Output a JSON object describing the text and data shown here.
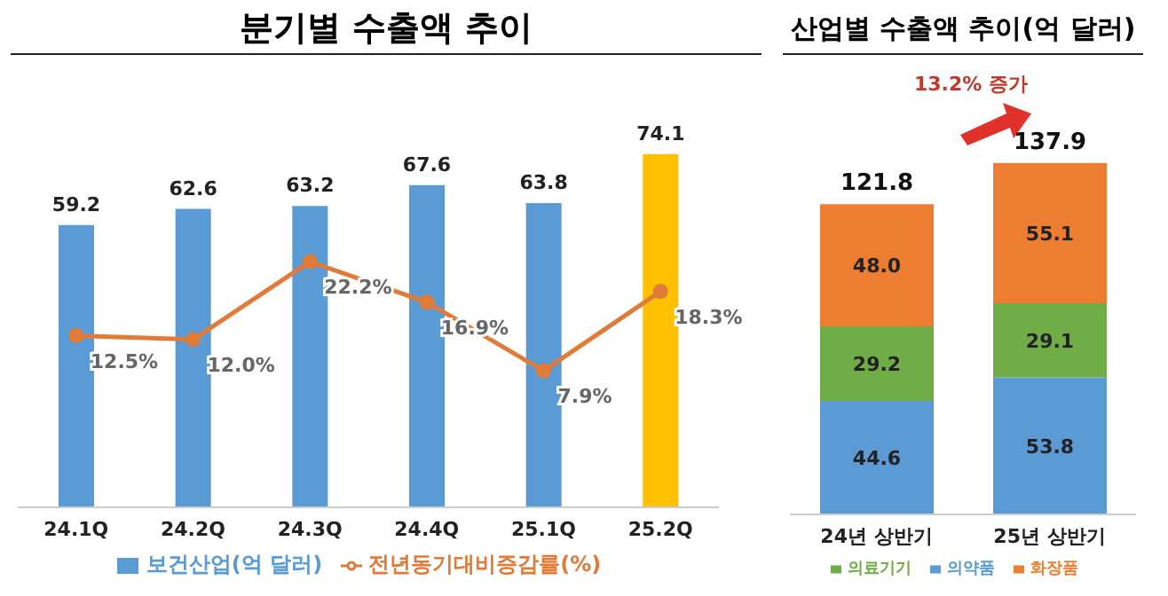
{
  "chart_data": [
    {
      "type": "bar",
      "title": "분기별 수출액 추이",
      "categories": [
        "24.1Q",
        "24.2Q",
        "24.3Q",
        "24.4Q",
        "25.1Q",
        "25.2Q"
      ],
      "tick_labels": "x",
      "legend": "bottom",
      "marker": "circle",
      "series": [
        {
          "name": "보건산업(억 달러)",
          "type": "bar",
          "color": "#5b9bd5",
          "colors": [
            "#5b9bd5",
            "#5b9bd5",
            "#5b9bd5",
            "#5b9bd5",
            "#5b9bd5",
            "#ffc000"
          ],
          "values": [
            59.2,
            62.6,
            63.2,
            67.6,
            63.8,
            74.1
          ],
          "value_labels": [
            "59.2",
            "62.6",
            "63.2",
            "67.6",
            "63.8",
            "74.1"
          ]
        },
        {
          "name": "전년동기대비증감률(%)",
          "type": "line",
          "axis": "y2",
          "color": "#e07b39",
          "values": [
            12.5,
            12.0,
            22.2,
            16.9,
            7.9,
            18.3
          ],
          "value_labels": [
            "12.5%",
            "12.0%",
            "22.2%",
            "16.9%",
            "7.9%",
            "18.3%"
          ]
        }
      ]
    },
    {
      "type": "bar",
      "title": "산업별 수출액 추이(억 달러)",
      "categories": [
        "24년 상반기",
        "25년 상반기"
      ],
      "stacked": true,
      "tick_labels": "x",
      "legend": "bottom",
      "totals": [
        "121.8",
        "137.9"
      ],
      "annotations": [
        "13.2% 증가"
      ],
      "series": [
        {
          "name": "의약품",
          "color": "#5b9bd5",
          "values": [
            44.6,
            53.8
          ],
          "value_labels": [
            "44.6",
            "53.8"
          ]
        },
        {
          "name": "의료기기",
          "color": "#70ad47",
          "values": [
            29.2,
            29.1
          ],
          "value_labels": [
            "29.2",
            "29.1"
          ]
        },
        {
          "name": "화장품",
          "color": "#ed7d31",
          "values": [
            48.0,
            55.1
          ],
          "value_labels": [
            "48.0",
            "55.1"
          ]
        }
      ]
    }
  ]
}
